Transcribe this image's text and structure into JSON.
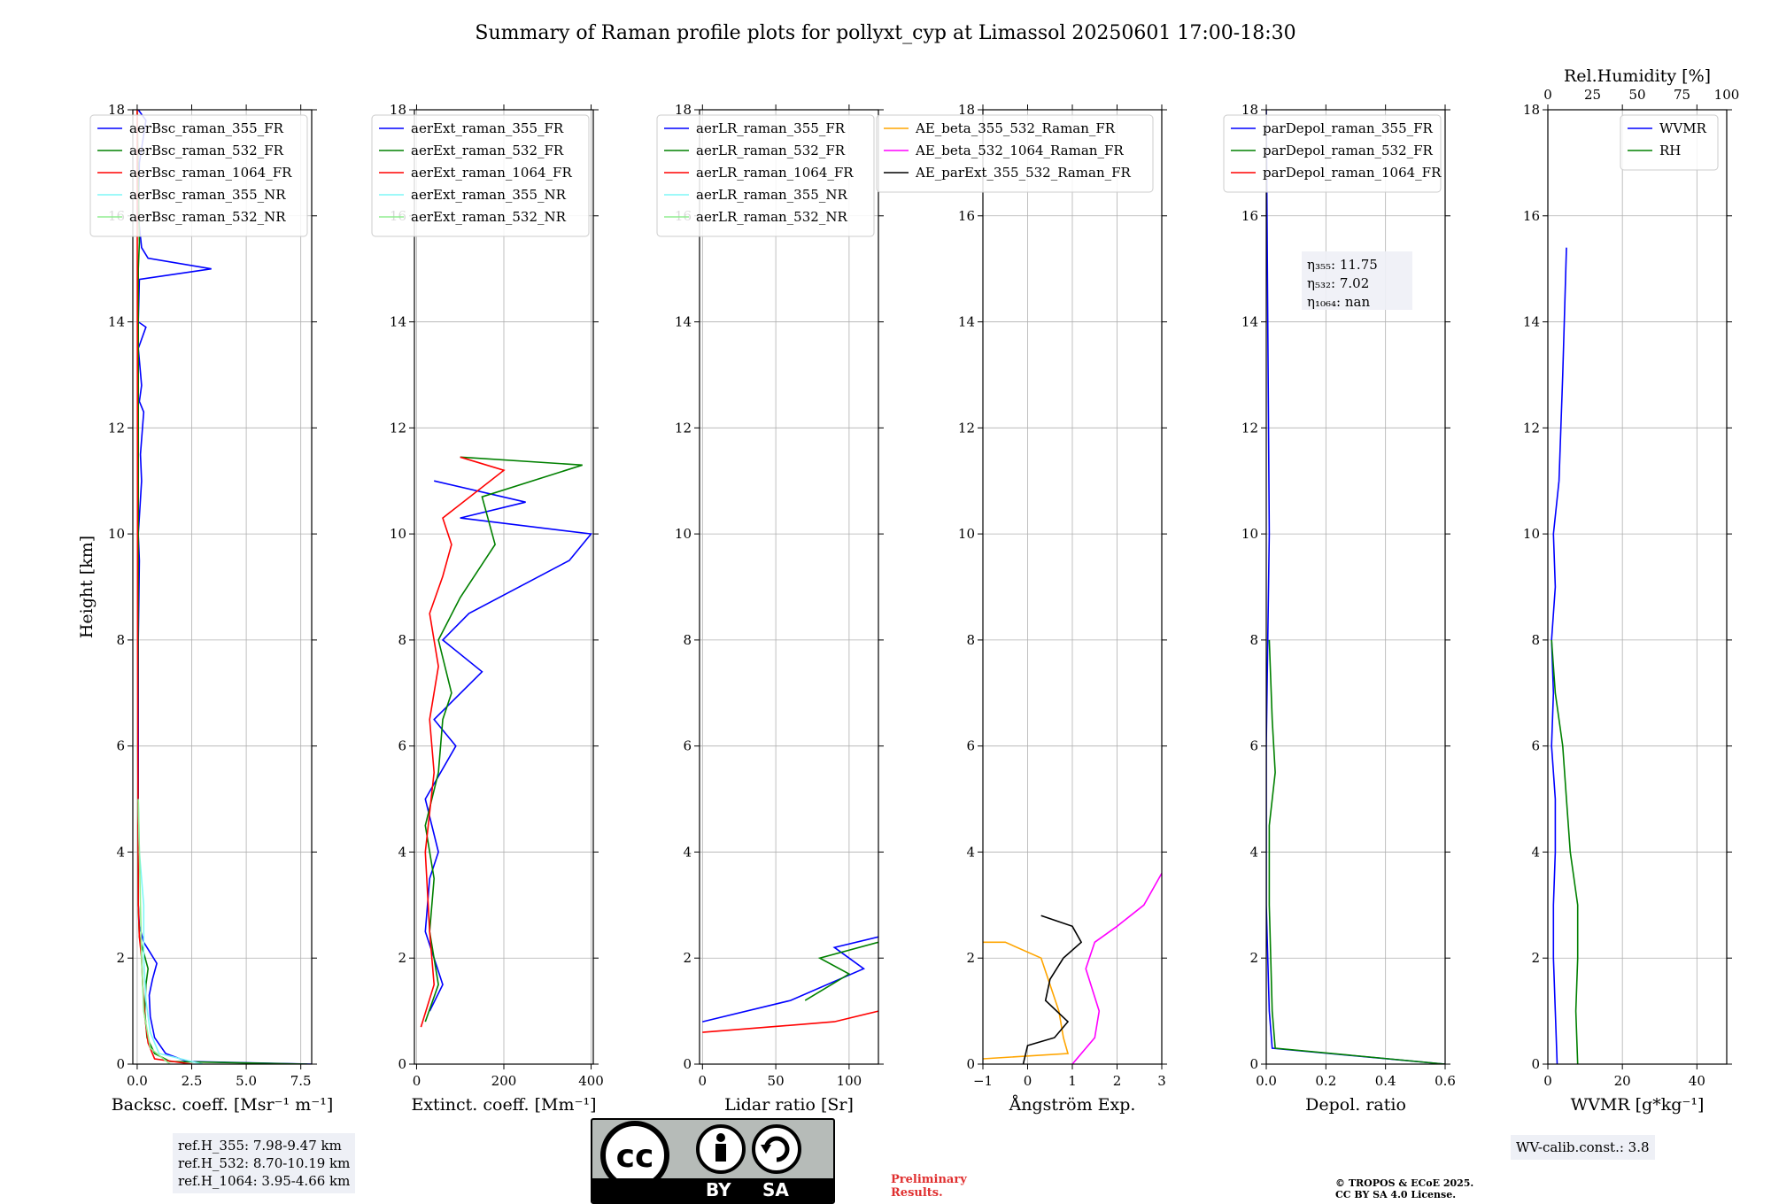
{
  "title": "Summary of Raman profile plots for pollyxt_cyp at Limassol 20250601 17:00-18:30",
  "ylabel": "Height [km]",
  "y_ticks": [
    "0",
    "2",
    "4",
    "6",
    "8",
    "10",
    "12",
    "14",
    "16",
    "18"
  ],
  "rh_axis": {
    "label": "Rel.Humidity [%]",
    "ticks": [
      "0",
      "25",
      "50",
      "75",
      "100"
    ]
  },
  "colors": {
    "blue": "#0000ff",
    "green": "#008000",
    "red": "#ff0000",
    "cyan": "#7ff7f7",
    "lightgreen": "#90ee90",
    "orange": "#ffa500",
    "magenta": "#ff00ff",
    "black": "#000000"
  },
  "chart_data": [
    {
      "type": "line",
      "xlabel": "Backsc. coeff. [Msr⁻¹ m⁻¹]",
      "xlim": [
        -0.2,
        8.0
      ],
      "ylim": [
        0,
        18
      ],
      "x_ticks": [
        "0.0",
        "2.5",
        "5.0",
        "7.5"
      ],
      "legend": [
        "aerBsc_raman_355_FR",
        "aerBsc_raman_532_FR",
        "aerBsc_raman_1064_FR",
        "aerBsc_raman_355_NR",
        "aerBsc_raman_532_NR"
      ],
      "legend_position": "top-left",
      "series": [
        {
          "name": "aerBsc_raman_355_FR",
          "color": "blue",
          "points": [
            [
              8.0,
              0.0
            ],
            [
              2.3,
              0.05
            ],
            [
              1.3,
              0.2
            ],
            [
              0.8,
              0.5
            ],
            [
              0.6,
              0.9
            ],
            [
              0.55,
              1.3
            ],
            [
              0.7,
              1.6
            ],
            [
              0.9,
              1.9
            ],
            [
              0.6,
              2.1
            ],
            [
              0.3,
              2.3
            ],
            [
              0.1,
              2.6
            ],
            [
              0.05,
              3.0
            ],
            [
              0.05,
              5.0
            ],
            [
              0.05,
              8.0
            ],
            [
              0.1,
              9.5
            ],
            [
              0.05,
              10.0
            ],
            [
              0.2,
              11.0
            ],
            [
              0.15,
              11.5
            ],
            [
              0.3,
              12.3
            ],
            [
              0.1,
              12.5
            ],
            [
              0.2,
              12.8
            ],
            [
              0.05,
              13.5
            ],
            [
              0.4,
              13.9
            ],
            [
              0.05,
              14.0
            ],
            [
              0.1,
              14.8
            ],
            [
              3.4,
              15.0
            ],
            [
              0.5,
              15.2
            ],
            [
              0.2,
              15.4
            ],
            [
              0.05,
              16.0
            ],
            [
              0.1,
              17.0
            ],
            [
              0.4,
              17.8
            ],
            [
              0.05,
              18.0
            ]
          ]
        },
        {
          "name": "aerBsc_raman_532_FR",
          "color": "green",
          "points": [
            [
              7.8,
              0.0
            ],
            [
              1.5,
              0.05
            ],
            [
              0.8,
              0.2
            ],
            [
              0.45,
              0.5
            ],
            [
              0.35,
              1.0
            ],
            [
              0.4,
              1.5
            ],
            [
              0.5,
              1.8
            ],
            [
              0.3,
              2.1
            ],
            [
              0.1,
              2.4
            ],
            [
              0.05,
              3.0
            ],
            [
              0.03,
              6.0
            ],
            [
              0.05,
              10.0
            ],
            [
              0.05,
              15.0
            ],
            [
              0.1,
              15.5
            ],
            [
              0.0,
              18.0
            ]
          ]
        },
        {
          "name": "aerBsc_raman_1064_FR",
          "color": "red",
          "points": [
            [
              2.5,
              0.0
            ],
            [
              0.8,
              0.1
            ],
            [
              0.5,
              0.4
            ],
            [
              0.35,
              0.9
            ],
            [
              0.25,
              1.5
            ],
            [
              0.2,
              2.0
            ],
            [
              0.1,
              2.4
            ],
            [
              0.05,
              3.0
            ],
            [
              0.02,
              8.0
            ],
            [
              0.0,
              18.0
            ]
          ]
        },
        {
          "name": "aerBsc_raman_355_NR",
          "color": "cyan",
          "points": [
            [
              3.0,
              0.0
            ],
            [
              1.0,
              0.2
            ],
            [
              0.6,
              0.6
            ],
            [
              0.4,
              1.2
            ],
            [
              0.3,
              2.0
            ],
            [
              0.3,
              3.0
            ],
            [
              0.1,
              4.0
            ],
            [
              0.05,
              5.0
            ]
          ]
        },
        {
          "name": "aerBsc_raman_532_NR",
          "color": "lightgreen",
          "points": [
            [
              1.5,
              0.0
            ],
            [
              0.6,
              0.3
            ],
            [
              0.3,
              1.0
            ],
            [
              0.2,
              2.0
            ],
            [
              0.15,
              3.0
            ],
            [
              0.1,
              4.0
            ],
            [
              0.05,
              5.0
            ]
          ]
        }
      ]
    },
    {
      "type": "line",
      "xlabel": "Extinct. coeff. [Mm⁻¹]",
      "xlim": [
        -5,
        405
      ],
      "ylim": [
        0,
        18
      ],
      "x_ticks": [
        "0",
        "200",
        "400"
      ],
      "legend": [
        "aerExt_raman_355_FR",
        "aerExt_raman_532_FR",
        "aerExt_raman_1064_FR",
        "aerExt_raman_355_NR",
        "aerExt_raman_532_NR"
      ],
      "legend_position": "top-left",
      "series": [
        {
          "name": "aerExt_raman_355_FR",
          "color": "blue",
          "points": [
            [
              30,
              1.0
            ],
            [
              60,
              1.5
            ],
            [
              40,
              2.0
            ],
            [
              20,
              2.5
            ],
            [
              30,
              3.5
            ],
            [
              50,
              4.0
            ],
            [
              20,
              5.0
            ],
            [
              90,
              6.0
            ],
            [
              40,
              6.5
            ],
            [
              150,
              7.4
            ],
            [
              60,
              8.0
            ],
            [
              120,
              8.5
            ],
            [
              350,
              9.5
            ],
            [
              400,
              10.0
            ],
            [
              100,
              10.3
            ],
            [
              250,
              10.6
            ],
            [
              40,
              11.0
            ]
          ]
        },
        {
          "name": "aerExt_raman_532_FR",
          "color": "green",
          "points": [
            [
              20,
              0.8
            ],
            [
              50,
              1.5
            ],
            [
              30,
              2.5
            ],
            [
              40,
              3.5
            ],
            [
              20,
              4.5
            ],
            [
              50,
              5.5
            ],
            [
              60,
              6.5
            ],
            [
              80,
              7.0
            ],
            [
              50,
              8.0
            ],
            [
              100,
              8.8
            ],
            [
              180,
              9.8
            ],
            [
              150,
              10.7
            ],
            [
              380,
              11.3
            ],
            [
              100,
              11.45
            ]
          ]
        },
        {
          "name": "aerExt_raman_1064_FR",
          "color": "red",
          "points": [
            [
              10,
              0.7
            ],
            [
              40,
              1.5
            ],
            [
              30,
              2.5
            ],
            [
              20,
              4.0
            ],
            [
              40,
              5.5
            ],
            [
              30,
              6.5
            ],
            [
              50,
              7.5
            ],
            [
              30,
              8.5
            ],
            [
              60,
              9.2
            ],
            [
              80,
              9.8
            ],
            [
              60,
              10.3
            ],
            [
              200,
              11.2
            ],
            [
              100,
              11.45
            ]
          ]
        }
      ]
    },
    {
      "type": "line",
      "xlabel": "Lidar ratio [Sr]",
      "xlim": [
        -2,
        120
      ],
      "ylim": [
        0,
        18
      ],
      "x_ticks": [
        "0",
        "50",
        "100"
      ],
      "legend": [
        "aerLR_raman_355_FR",
        "aerLR_raman_532_FR",
        "aerLR_raman_1064_FR",
        "aerLR_raman_355_NR",
        "aerLR_raman_532_NR"
      ],
      "legend_position": "top-left",
      "series": [
        {
          "name": "aerLR_raman_355_FR",
          "color": "blue",
          "points": [
            [
              0,
              0.8
            ],
            [
              60,
              1.2
            ],
            [
              110,
              1.8
            ],
            [
              90,
              2.2
            ],
            [
              120,
              2.4
            ]
          ]
        },
        {
          "name": "aerLR_raman_532_FR",
          "color": "green",
          "points": [
            [
              70,
              1.2
            ],
            [
              100,
              1.7
            ],
            [
              80,
              2.0
            ],
            [
              120,
              2.3
            ]
          ]
        },
        {
          "name": "aerLR_raman_1064_FR",
          "color": "red",
          "points": [
            [
              0,
              0.6
            ],
            [
              90,
              0.8
            ],
            [
              120,
              1.0
            ]
          ]
        }
      ]
    },
    {
      "type": "line",
      "xlabel": "Ångström Exp.",
      "xlim": [
        -1,
        3
      ],
      "ylim": [
        0,
        18
      ],
      "x_ticks": [
        "−1",
        "0",
        "1",
        "2",
        "3"
      ],
      "legend": [
        "AE_beta_355_532_Raman_FR",
        "AE_beta_532_1064_Raman_FR",
        "AE_parExt_355_532_Raman_FR"
      ],
      "legend_position": "top-left",
      "series": [
        {
          "name": "AE_beta_355_532_Raman_FR",
          "color": "orange",
          "points": [
            [
              -1,
              0.1
            ],
            [
              0.9,
              0.2
            ],
            [
              0.8,
              0.5
            ],
            [
              0.7,
              1.0
            ],
            [
              0.5,
              1.5
            ],
            [
              0.3,
              2.0
            ],
            [
              -0.5,
              2.3
            ],
            [
              -1,
              2.3
            ]
          ]
        },
        {
          "name": "AE_beta_532_1064_Raman_FR",
          "color": "magenta",
          "points": [
            [
              1.0,
              0.0
            ],
            [
              1.5,
              0.5
            ],
            [
              1.6,
              1.0
            ],
            [
              1.3,
              1.8
            ],
            [
              1.5,
              2.3
            ],
            [
              2.0,
              2.6
            ],
            [
              2.6,
              3.0
            ],
            [
              3.0,
              3.6
            ]
          ]
        },
        {
          "name": "AE_parExt_355_532_Raman_FR",
          "color": "black",
          "points": [
            [
              -0.1,
              0.0
            ],
            [
              0.0,
              0.35
            ],
            [
              0.6,
              0.5
            ],
            [
              0.9,
              0.8
            ],
            [
              0.4,
              1.2
            ],
            [
              0.5,
              1.6
            ],
            [
              0.8,
              2.0
            ],
            [
              1.2,
              2.3
            ],
            [
              1.0,
              2.6
            ],
            [
              0.3,
              2.8
            ]
          ]
        }
      ]
    },
    {
      "type": "line",
      "xlabel": "Depol. ratio",
      "xlim": [
        0,
        0.6
      ],
      "ylim": [
        0,
        18
      ],
      "x_ticks": [
        "0.0",
        "0.2",
        "0.4",
        "0.6"
      ],
      "legend": [
        "parDepol_raman_355_FR",
        "parDepol_raman_532_FR",
        "parDepol_raman_1064_FR"
      ],
      "legend_position": "top-left",
      "annotations": [
        "η₃₅₅: 11.75",
        "η₅₃₂: 7.02",
        "η₁₀₆₄: nan"
      ],
      "series": [
        {
          "name": "parDepol_raman_355_FR",
          "color": "blue",
          "points": [
            [
              0.6,
              0.0
            ],
            [
              0.02,
              0.3
            ],
            [
              0.01,
              1.0
            ],
            [
              0.0,
              3.0
            ],
            [
              0.0,
              6.0
            ],
            [
              0.01,
              10.0
            ],
            [
              0.0,
              18.0
            ]
          ]
        },
        {
          "name": "parDepol_raman_532_FR",
          "color": "green",
          "points": [
            [
              0.6,
              0.0
            ],
            [
              0.03,
              0.3
            ],
            [
              0.02,
              1.0
            ],
            [
              0.01,
              3.0
            ],
            [
              0.01,
              4.5
            ],
            [
              0.03,
              5.5
            ],
            [
              0.02,
              6.5
            ],
            [
              0.01,
              8.0
            ]
          ]
        }
      ]
    },
    {
      "type": "line",
      "xlabel": "WVMR [g*kg⁻¹]",
      "xlim": [
        0,
        48
      ],
      "ylim": [
        0,
        18
      ],
      "x_ticks": [
        "0",
        "20",
        "40"
      ],
      "legend": [
        "WVMR",
        "RH"
      ],
      "legend_position": "top-right",
      "annotations": [
        "WV-calib.const.: 3.8"
      ],
      "series": [
        {
          "name": "WVMR",
          "color": "blue",
          "points": [
            [
              2.5,
              0.0
            ],
            [
              2.0,
              1.0
            ],
            [
              1.5,
              2.0
            ],
            [
              1.5,
              3.0
            ],
            [
              2.0,
              4.0
            ],
            [
              2.0,
              5.0
            ],
            [
              1.0,
              6.0
            ],
            [
              1.5,
              7.0
            ],
            [
              1.0,
              8.0
            ],
            [
              2.0,
              9.0
            ],
            [
              1.5,
              10.0
            ],
            [
              3.0,
              11.0
            ],
            [
              4.0,
              13.0
            ],
            [
              5.0,
              15.4
            ]
          ]
        },
        {
          "name": "RH",
          "color": "green",
          "points": [
            [
              8.0,
              0.0
            ],
            [
              7.5,
              1.0
            ],
            [
              8.0,
              2.0
            ],
            [
              8.0,
              3.0
            ],
            [
              6.0,
              4.0
            ],
            [
              5.0,
              5.0
            ],
            [
              4.0,
              6.0
            ],
            [
              2.0,
              7.0
            ],
            [
              1.0,
              8.0
            ]
          ]
        }
      ]
    }
  ],
  "ref_heights": [
    "ref.H_355: 7.98-9.47 km",
    "ref.H_532: 8.70-10.19 km",
    "ref.H_1064: 3.95-4.66 km"
  ],
  "license": {
    "cc": "cc",
    "by": "BY",
    "sa": "SA"
  },
  "preliminary": [
    "Preliminary",
    "Results."
  ],
  "copyright": [
    "© TROPOS & ECoE 2025.",
    "CC BY SA 4.0 License."
  ]
}
